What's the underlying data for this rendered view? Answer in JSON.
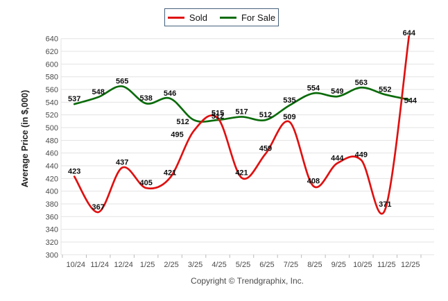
{
  "legend": {
    "items": [
      {
        "label": "Sold",
        "color": "#e01010"
      },
      {
        "label": "For Sale",
        "color": "#0a6b0a"
      }
    ]
  },
  "y_axis": {
    "title": "Average Price (in $,000)",
    "min": 300,
    "max": 640,
    "step": 20
  },
  "footer": {
    "copyright": "Copyright © Trendgraphix, Inc."
  },
  "chart_data": {
    "type": "line",
    "title": "",
    "xlabel": "",
    "ylabel": "Average Price (in $,000)",
    "ylim": [
      300,
      640
    ],
    "ystep": 20,
    "grid": "horizontal",
    "legend_position": "top-center",
    "categories": [
      "10/24",
      "11/24",
      "12/24",
      "1/25",
      "2/25",
      "3/25",
      "4/25",
      "5/25",
      "6/25",
      "7/25",
      "8/25",
      "9/25",
      "10/25",
      "11/25",
      "12/25"
    ],
    "series": [
      {
        "name": "Sold",
        "color": "#e01010",
        "values": [
          423,
          367,
          437,
          405,
          421,
          495,
          515,
          421,
          459,
          509,
          408,
          444,
          449,
          371,
          644
        ]
      },
      {
        "name": "For Sale",
        "color": "#0a6b0a",
        "values": [
          537,
          548,
          565,
          538,
          546,
          512,
          512,
          517,
          512,
          535,
          554,
          549,
          563,
          552,
          544
        ]
      }
    ]
  }
}
